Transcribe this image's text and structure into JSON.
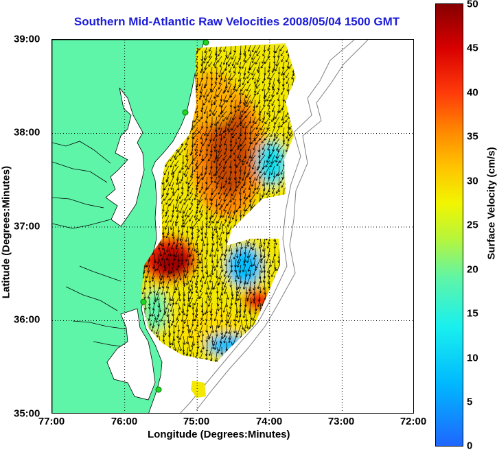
{
  "title": "Southern Mid-Atlantic Raw Velocities 2008/05/04 1500 GMT",
  "xlabel": "Longitude (Degrees:Minutes)",
  "ylabel": "Latitude (Degrees:Minutes)",
  "x_ticks": [
    "77:00",
    "76:00",
    "75:00",
    "74:00",
    "73:00",
    "72:00"
  ],
  "y_ticks": [
    "39:00",
    "38:00",
    "37:00",
    "36:00",
    "35:00"
  ],
  "colorbar": {
    "label": "Surface Velocity (cm/s)",
    "ticks": [
      "50",
      "45",
      "40",
      "35",
      "30",
      "25",
      "20",
      "15",
      "10",
      "5",
      "0"
    ],
    "min": 0,
    "max": 50
  },
  "colors": {
    "land": "#5ff5a8",
    "water": "#ffffff",
    "title": "#1b1bd8",
    "station": "#22d522",
    "bathymetry": "#808080"
  },
  "map_extent": {
    "lon": [
      -77,
      -72
    ],
    "lat": [
      35,
      39
    ]
  }
}
